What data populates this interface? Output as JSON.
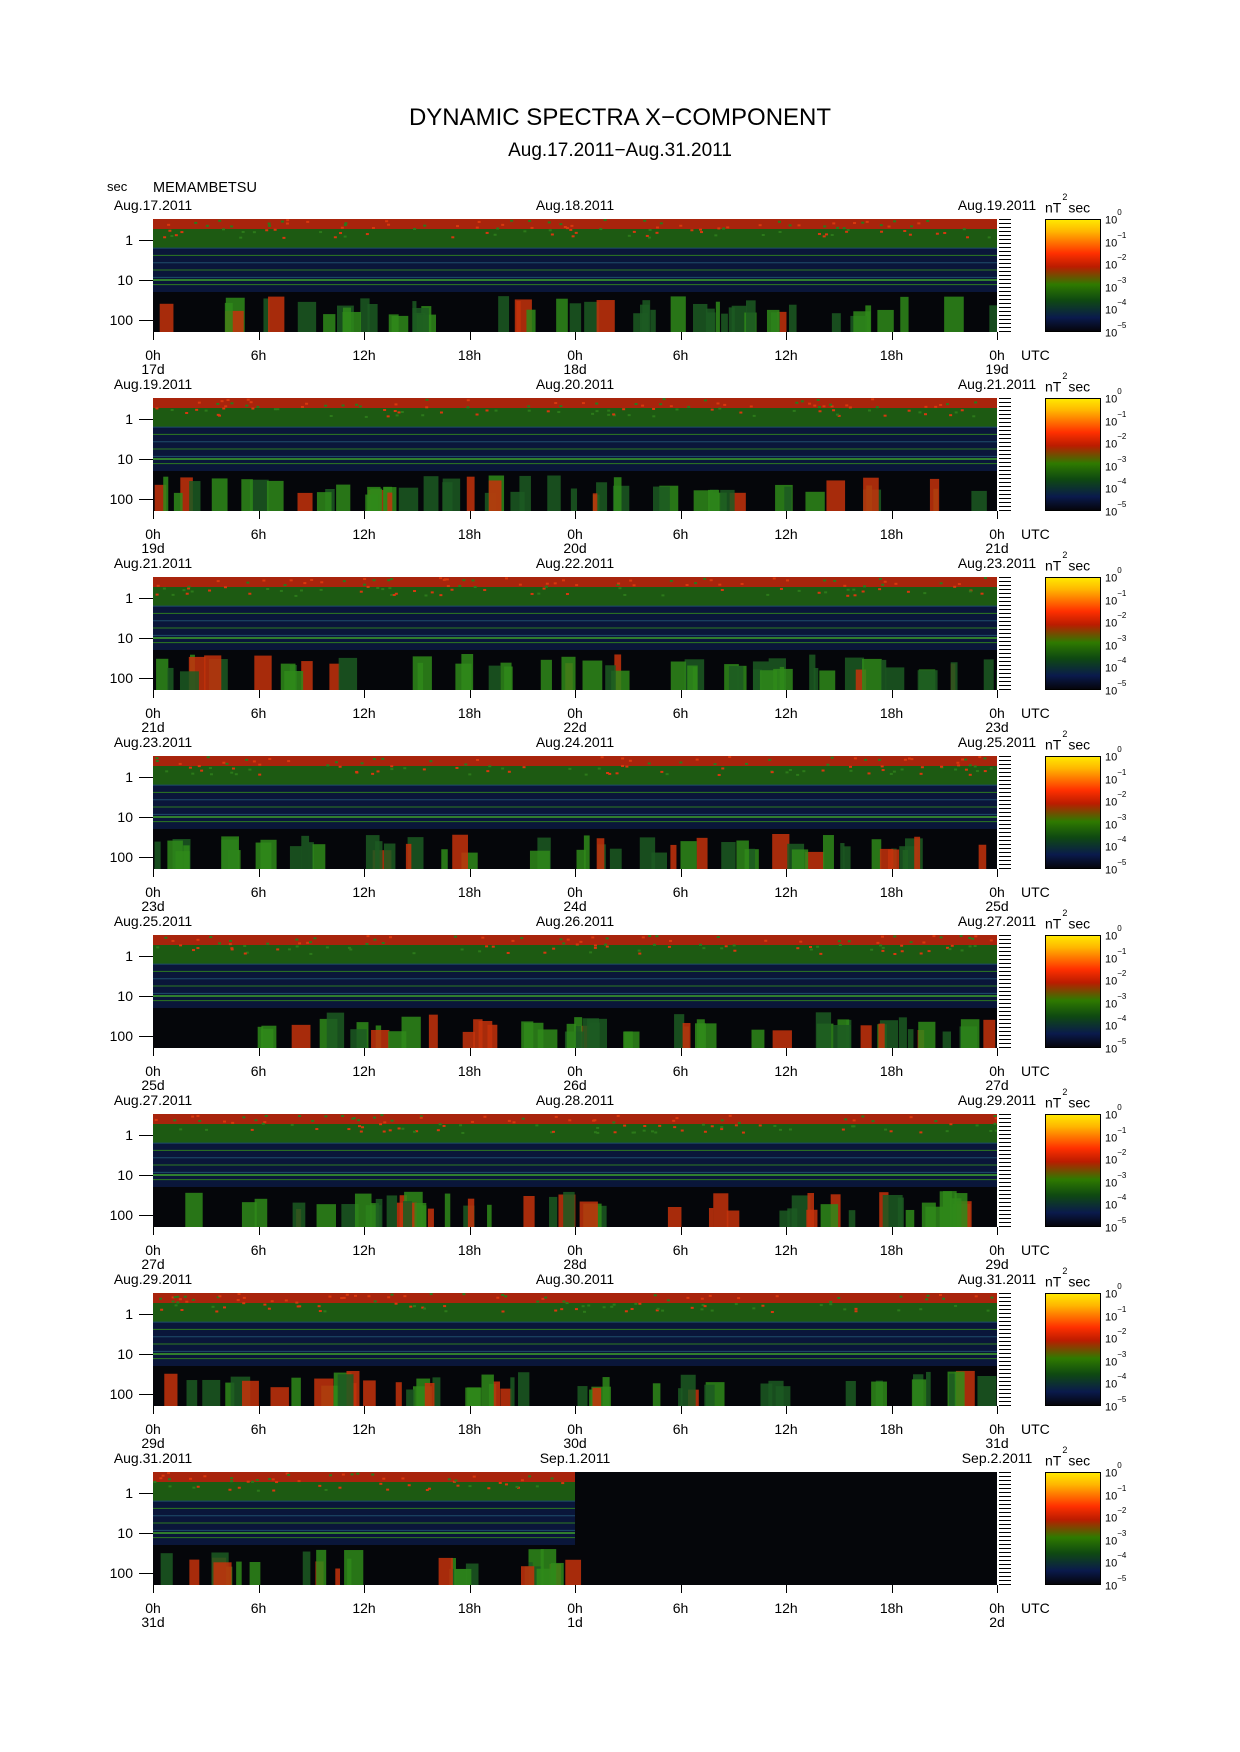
{
  "title": "DYNAMIC SPECTRA X−COMPONENT",
  "subtitle": "Aug.17.2011−Aug.31.2011",
  "y_unit_label": "sec",
  "station": "MEMAMBETSU",
  "colorbar": {
    "unit_base": "nT",
    "unit_exp": "2",
    "unit_suffix": "sec",
    "tick_base": "10",
    "tick_exps": [
      "0",
      "−1",
      "−2",
      "−3",
      "−4",
      "−5"
    ]
  },
  "chart_data": {
    "type": "heatmap",
    "y_axis": {
      "label": "sec",
      "scale": "log",
      "range": [
        0.3,
        200
      ],
      "ticks": [
        1,
        10,
        100
      ],
      "tick_labels": [
        "1",
        "10",
        "100"
      ]
    },
    "x_axis": {
      "range_hours": [
        0,
        48
      ],
      "tick_labels": [
        "0h",
        "6h",
        "12h",
        "18h",
        "0h",
        "6h",
        "12h",
        "18h",
        "0h"
      ],
      "timezone_label": "UTC"
    },
    "color_scale": {
      "scale": "log",
      "range": [
        1e-05,
        1
      ],
      "unit": "nT^2 sec"
    },
    "panels": [
      {
        "date_left": "Aug.17.2011",
        "date_mid": "Aug.18.2011",
        "date_right": "Aug.19.2011",
        "days": [
          "17d",
          "18d",
          "19d"
        ],
        "data_fraction": 1
      },
      {
        "date_left": "Aug.19.2011",
        "date_mid": "Aug.20.2011",
        "date_right": "Aug.21.2011",
        "days": [
          "19d",
          "20d",
          "21d"
        ],
        "data_fraction": 1
      },
      {
        "date_left": "Aug.21.2011",
        "date_mid": "Aug.22.2011",
        "date_right": "Aug.23.2011",
        "days": [
          "21d",
          "22d",
          "23d"
        ],
        "data_fraction": 1
      },
      {
        "date_left": "Aug.23.2011",
        "date_mid": "Aug.24.2011",
        "date_right": "Aug.25.2011",
        "days": [
          "23d",
          "24d",
          "25d"
        ],
        "data_fraction": 1
      },
      {
        "date_left": "Aug.25.2011",
        "date_mid": "Aug.26.2011",
        "date_right": "Aug.27.2011",
        "days": [
          "25d",
          "26d",
          "27d"
        ],
        "data_fraction": 1
      },
      {
        "date_left": "Aug.27.2011",
        "date_mid": "Aug.28.2011",
        "date_right": "Aug.29.2011",
        "days": [
          "27d",
          "28d",
          "29d"
        ],
        "data_fraction": 1
      },
      {
        "date_left": "Aug.29.2011",
        "date_mid": "Aug.30.2011",
        "date_right": "Aug.31.2011",
        "days": [
          "29d",
          "30d",
          "31d"
        ],
        "data_fraction": 1
      },
      {
        "date_left": "Aug.31.2011",
        "date_mid": "Sep.1.2011",
        "date_right": "Sep.2.2011",
        "days": [
          "31d",
          "1d",
          "2d"
        ],
        "data_fraction": 0.5
      }
    ]
  }
}
